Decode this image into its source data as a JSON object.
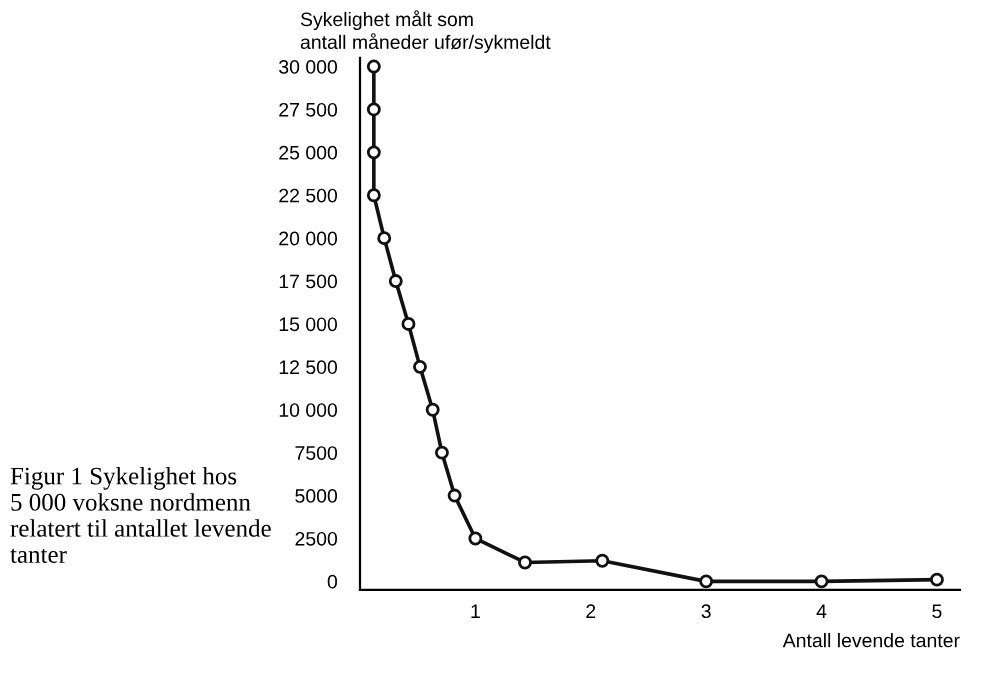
{
  "chart_data": {
    "type": "line",
    "ylabel": "Sykelighet målt som\nantall måneder ufør/sykmeldt",
    "xlabel": "Antall levende tanter",
    "annotations": [
      "Figur 1 Sykelighet hos\n5 000 voksne nordmenn\nrelatert til antallet levende\ntanter"
    ],
    "series": [
      {
        "color": "#111111",
        "x": [
          0.12,
          0.12,
          0.12,
          0.12,
          0.21,
          0.31,
          0.42,
          0.52,
          0.63,
          0.71,
          0.82,
          1.0,
          1.43,
          2.1,
          3.0,
          4.0,
          5.0
        ],
        "values": [
          30000,
          27500,
          25000,
          22500,
          20000,
          17500,
          15000,
          12500,
          10000,
          7500,
          5000,
          2500,
          1100,
          1200,
          0,
          0,
          100
        ]
      }
    ],
    "xlim": [
      0,
      5.2
    ],
    "ylim": [
      -500,
      30500
    ],
    "xticks": [
      1,
      2,
      3,
      4,
      5
    ],
    "yticks": [
      0,
      2500,
      5000,
      7500,
      {
        "value": 10000,
        "label": "10 000"
      },
      {
        "value": 12500,
        "label": "12 500"
      },
      {
        "value": 15000,
        "label": "15 000"
      },
      {
        "value": 17500,
        "label": "17 500"
      },
      {
        "value": 20000,
        "label": "20 000"
      },
      {
        "value": 22500,
        "label": "22 500"
      },
      {
        "value": 25000,
        "label": "25 000"
      },
      {
        "value": 27500,
        "label": "27 500"
      },
      {
        "value": 30000,
        "label": "30 000"
      }
    ],
    "grid": false,
    "marker": "circle",
    "line_style": "solid",
    "legend": false
  }
}
